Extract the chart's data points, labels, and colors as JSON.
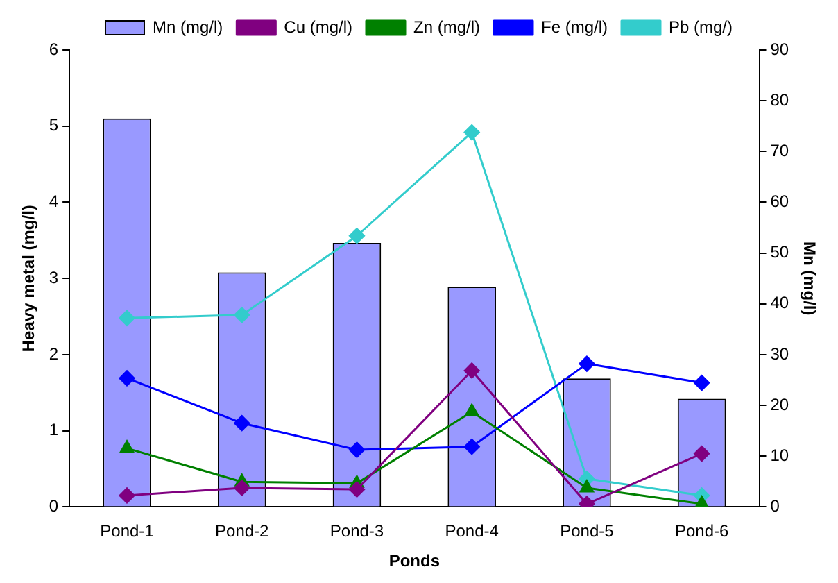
{
  "chart_data": {
    "type": "bar",
    "xlabel": "Ponds",
    "ylabel": "Heavy metal (mg/l)",
    "y2label": "Mn (mg/l)",
    "categories": [
      "Pond-1",
      "Pond-2",
      "Pond-3",
      "Pond-4",
      "Pond-5",
      "Pond-6"
    ],
    "series": [
      {
        "name": "Mn (mg/l)",
        "type": "bar",
        "axis": "y2",
        "color": "#9999ff",
        "values": [
          76.5,
          46.2,
          52,
          43.4,
          25.3,
          21.3
        ]
      },
      {
        "name": "Cu (mg/l)",
        "type": "line",
        "marker": "diamond",
        "color": "#800080",
        "values": [
          0.15,
          0.25,
          0.23,
          1.79,
          0.04,
          0.7
        ]
      },
      {
        "name": "Zn (mg/l)",
        "type": "line",
        "marker": "triangle",
        "color": "#008000",
        "values": [
          0.77,
          0.33,
          0.31,
          1.25,
          0.25,
          0.04
        ]
      },
      {
        "name": "Fe (mg/l)",
        "type": "line",
        "marker": "diamond",
        "color": "#0000ff",
        "values": [
          1.69,
          1.1,
          0.75,
          0.79,
          1.88,
          1.63
        ]
      },
      {
        "name": "Pb (mg/)",
        "type": "line",
        "marker": "diamond",
        "color": "#33cccc",
        "values": [
          2.48,
          2.52,
          3.56,
          4.92,
          0.37,
          0.15
        ]
      }
    ],
    "ylim": [
      0,
      6
    ],
    "yticks": [
      0,
      1,
      2,
      3,
      4,
      5,
      6
    ],
    "y2lim": [
      0,
      90
    ],
    "y2ticks": [
      0,
      10,
      20,
      30,
      40,
      50,
      60,
      70,
      80,
      90
    ],
    "grid": false,
    "legend": "top"
  }
}
